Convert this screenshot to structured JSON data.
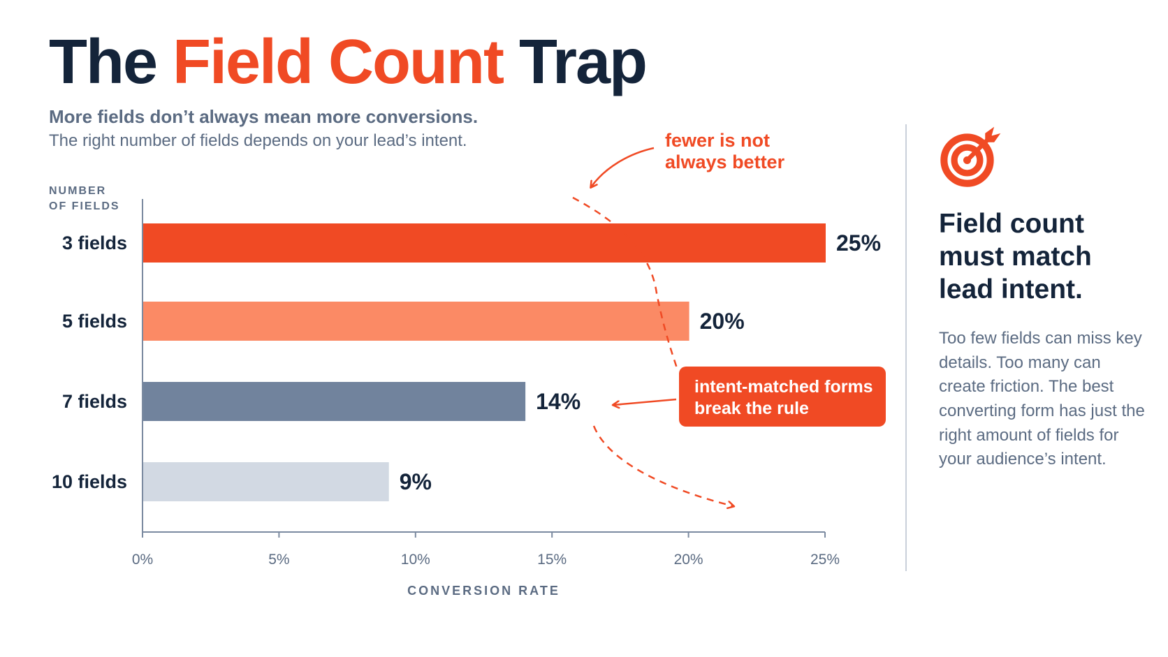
{
  "header": {
    "title_part1": "The ",
    "title_accent": "Field Count",
    "title_part2": " Trap",
    "subtitle": "More fields don’t always mean more conversions.",
    "subtitle2": "The right number of fields depends on your lead’s intent."
  },
  "chart_data": {
    "type": "bar",
    "orientation": "horizontal",
    "ylabel_lines": [
      "NUMBER",
      "OF FIELDS"
    ],
    "xlabel": "CONVERSION RATE",
    "categories": [
      "3 fields",
      "5 fields",
      "7 fields",
      "10 fields"
    ],
    "values": [
      25,
      20,
      14,
      9
    ],
    "value_labels": [
      "25%",
      "20%",
      "14%",
      "9%"
    ],
    "bar_colors": [
      "#f04a24",
      "#fb8a65",
      "#71839d",
      "#d2d9e3"
    ],
    "xlim": [
      0,
      25
    ],
    "xticks": [
      0,
      5,
      10,
      15,
      20,
      25
    ],
    "xtick_labels": [
      "0%",
      "5%",
      "10%",
      "15%",
      "20%",
      "25%"
    ],
    "grid": false,
    "annotations": {
      "top_note": [
        "fewer is not",
        "always better"
      ],
      "callout": [
        "intent-matched forms",
        "break the rule"
      ]
    }
  },
  "sidebar": {
    "icon": "target-icon",
    "heading": "Field count must match lead intent.",
    "body": "Too few fields can miss key details. Too many can create friction. The best converting form has just the right amount of fields for your audience’s intent."
  },
  "colors": {
    "accent": "#f04a24",
    "text_dark": "#14243a",
    "text_muted": "#5b6b82",
    "axis": "#7b8aa0"
  }
}
